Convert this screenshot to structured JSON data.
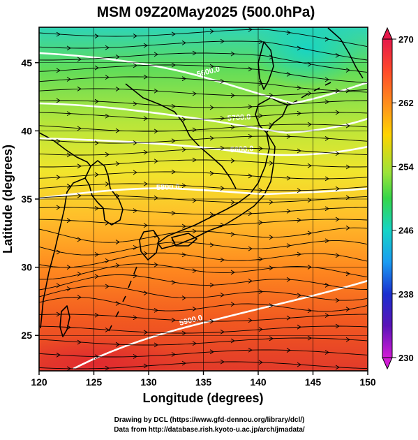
{
  "title": "MSM 09Z20May2025 (500.0hPa)",
  "x_axis": {
    "label": "Longitude (degrees)",
    "ticks": [
      "120",
      "125",
      "130",
      "135",
      "140",
      "145",
      "150"
    ]
  },
  "y_axis": {
    "label": "Latitude  (degrees)",
    "ticks": [
      "25",
      "30",
      "35",
      "40",
      "45"
    ]
  },
  "colorbar": {
    "ticks": [
      "270",
      "262",
      "254",
      "246",
      "238",
      "230"
    ],
    "colors": [
      "#e6194b",
      "#ff7a1a",
      "#ffd400",
      "#9be33a",
      "#35d64a",
      "#16d4c6",
      "#1a9cf2",
      "#1a2fd0",
      "#5a13b8",
      "#d21cd6"
    ]
  },
  "contours": [
    {
      "label": "5600.0"
    },
    {
      "label": "5600.0"
    },
    {
      "label": "5700.0"
    },
    {
      "label": "5800.0"
    },
    {
      "label": "5900.0"
    }
  ],
  "footer": {
    "line1": "Drawing by DCL (https://www.gfd-dennou.org/library/dcl/)",
    "line2": "Data from http://database.rish.kyoto-u.ac.jp/arch/jmadata/"
  }
}
